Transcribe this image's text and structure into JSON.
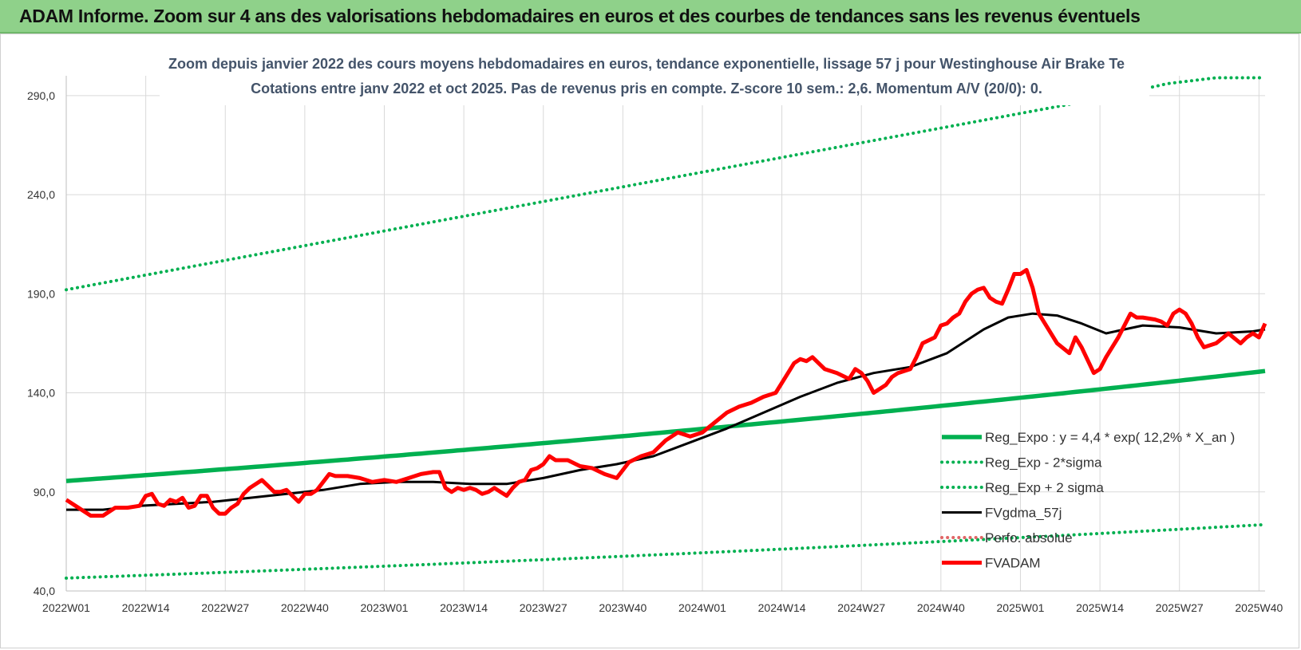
{
  "header": {
    "title": "ADAM Informe. Zoom sur 4 ans des valorisations hebdomadaires en euros et des courbes de tendances sans les revenus éventuels"
  },
  "colors": {
    "banner": "#8fd18a",
    "reg_expo": "#00b050",
    "fvgdma": "#000000",
    "fvadam": "#ff0000",
    "perfo": "#e06666",
    "grid": "#d9d9d9",
    "title_text": "#44546a"
  },
  "chart_data": {
    "type": "line",
    "title": "Zoom depuis janvier 2022 des cours moyens hebdomadaires en euros, tendance exponentielle, lissage 57 j pour Westinghouse Air Brake Te",
    "subtitle": "Cotations entre janv 2022 et oct 2025. Pas de revenus pris en compte. Z-score 10 sem.: 2,6. Momentum A/V (20/0): 0.",
    "xlabel": "",
    "ylabel": "",
    "x_range_weeks": [
      0,
      196
    ],
    "ylim": [
      40,
      300
    ],
    "y_ticks": [
      40,
      90,
      140,
      190,
      240,
      290
    ],
    "y_tick_labels": [
      "40,0",
      "90,0",
      "140,0",
      "190,0",
      "240,0",
      "290,0"
    ],
    "x_ticks": [
      0,
      13,
      26,
      39,
      52,
      65,
      78,
      91,
      104,
      117,
      130,
      143,
      156,
      169,
      182,
      195
    ],
    "x_tick_labels": [
      "2022W01",
      "2022W14",
      "2022W27",
      "2022W40",
      "2023W01",
      "2023W14",
      "2023W27",
      "2023W40",
      "2024W01",
      "2024W14",
      "2024W27",
      "2024W40",
      "2025W01",
      "2025W14",
      "2025W27",
      "2025W40"
    ],
    "grid": true,
    "legend_position": "bottom-right",
    "series": [
      {
        "name": "Reg_Expo : y = 4,4 * exp( 12,2% * X_an )",
        "style": "solid-thick",
        "color": "#00b050",
        "x": [
          0,
          196
        ],
        "y": [
          95.5,
          151
        ],
        "curve": "exponential"
      },
      {
        "name": "Reg_Exp - 2*sigma",
        "style": "dotted",
        "color": "#00b050",
        "x": [
          0,
          196
        ],
        "y": [
          46.5,
          73.5
        ],
        "curve": "exponential"
      },
      {
        "name": "Reg_Exp + 2 sigma",
        "style": "dotted",
        "color": "#00b050",
        "x": [
          0,
          170,
          180,
          188,
          196
        ],
        "y": [
          192,
          289,
          296,
          299,
          299
        ]
      },
      {
        "name": "FVgdma_57j",
        "style": "solid",
        "color": "#000000",
        "x": [
          0,
          6,
          12,
          18,
          24,
          30,
          36,
          42,
          48,
          54,
          60,
          66,
          72,
          78,
          84,
          90,
          96,
          102,
          108,
          114,
          120,
          126,
          132,
          138,
          144,
          150,
          154,
          158,
          162,
          166,
          170,
          176,
          182,
          188,
          194,
          196
        ],
        "y": [
          81,
          81,
          83,
          84,
          85,
          87,
          89,
          91,
          94,
          95,
          95,
          94,
          94,
          97,
          101,
          104,
          108,
          115,
          122,
          130,
          138,
          145,
          150,
          153,
          160,
          172,
          178,
          180,
          179,
          175,
          170,
          174,
          173,
          170,
          171,
          172
        ]
      },
      {
        "name": "Perfo. absolue",
        "style": "dotted",
        "color": "#e06666",
        "x": [],
        "y": []
      },
      {
        "name": "FVADAM",
        "style": "solid-thick",
        "color": "#ff0000",
        "x": [
          0,
          2,
          4,
          6,
          8,
          10,
          12,
          13,
          14,
          15,
          16,
          17,
          18,
          19,
          20,
          21,
          22,
          23,
          24,
          25,
          26,
          27,
          28,
          29,
          30,
          32,
          33,
          34,
          35,
          36,
          38,
          39,
          40,
          41,
          42,
          43,
          44,
          46,
          48,
          50,
          52,
          54,
          56,
          58,
          60,
          61,
          62,
          63,
          64,
          65,
          66,
          67,
          68,
          69,
          70,
          71,
          72,
          73,
          74,
          75,
          76,
          77,
          78,
          79,
          80,
          82,
          84,
          86,
          88,
          89,
          90,
          92,
          94,
          95,
          96,
          98,
          100,
          102,
          104,
          106,
          108,
          110,
          112,
          114,
          116,
          118,
          119,
          120,
          121,
          122,
          123,
          124,
          126,
          128,
          129,
          130,
          131,
          132,
          134,
          135,
          136,
          138,
          139,
          140,
          142,
          143,
          144,
          145,
          146,
          147,
          148,
          149,
          150,
          151,
          152,
          153,
          154,
          155,
          156,
          157,
          158,
          159,
          160,
          162,
          164,
          165,
          166,
          168,
          169,
          170,
          172,
          174,
          175,
          176,
          178,
          179,
          180,
          181,
          182,
          183,
          184,
          185,
          186,
          188,
          190,
          192,
          193,
          194,
          195,
          196
        ],
        "y": [
          86,
          82,
          78,
          78,
          82,
          82,
          83,
          88,
          89,
          84,
          83,
          86,
          85,
          87,
          82,
          83,
          88,
          88,
          82,
          79,
          79,
          82,
          84,
          89,
          92,
          96,
          93,
          90,
          90,
          91,
          85,
          89,
          89,
          91,
          95,
          99,
          98,
          98,
          97,
          95,
          96,
          95,
          97,
          99,
          100,
          100,
          92,
          90,
          92,
          91,
          92,
          91,
          89,
          90,
          92,
          90,
          88,
          92,
          95,
          96,
          101,
          102,
          104,
          108,
          106,
          106,
          103,
          102,
          99,
          98,
          97,
          105,
          108,
          109,
          110,
          116,
          120,
          118,
          120,
          125,
          130,
          133,
          135,
          138,
          140,
          150,
          155,
          157,
          156,
          158,
          155,
          152,
          150,
          147,
          152,
          150,
          146,
          140,
          144,
          148,
          150,
          152,
          158,
          165,
          168,
          174,
          175,
          178,
          180,
          186,
          190,
          192,
          193,
          188,
          186,
          185,
          192,
          200,
          200,
          202,
          193,
          180,
          175,
          165,
          160,
          168,
          163,
          150,
          152,
          158,
          168,
          180,
          178,
          178,
          177,
          176,
          174,
          180,
          182,
          180,
          175,
          168,
          163,
          165,
          170,
          165,
          168,
          170,
          168,
          175
        ]
      }
    ]
  }
}
